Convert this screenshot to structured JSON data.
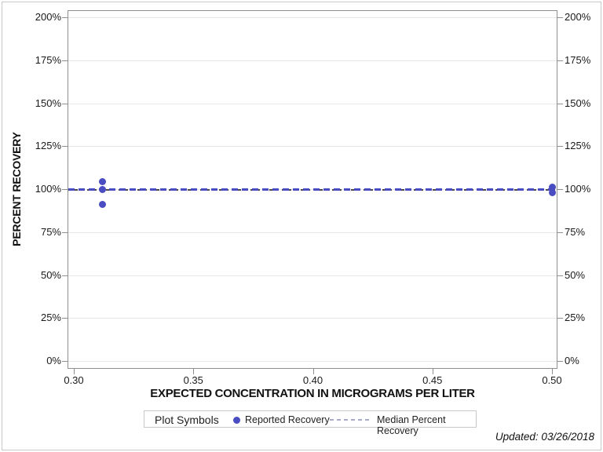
{
  "chart_data": {
    "type": "scatter",
    "title": "",
    "xlabel": "EXPECTED CONCENTRATION IN MICROGRAMS PER LITER",
    "ylabel": "PERCENT RECOVERY",
    "xlim": [
      0.3,
      0.5
    ],
    "ylim": [
      0,
      200
    ],
    "grid": "horizontal",
    "x_tick_values": [
      0.3,
      0.35,
      0.4,
      0.45,
      0.5
    ],
    "x_tick_labels": [
      "0.30",
      "0.35",
      "0.40",
      "0.45",
      "0.50"
    ],
    "y_tick_values": [
      0,
      25,
      50,
      75,
      100,
      125,
      150,
      175,
      200
    ],
    "y_tick_labels": [
      "0%",
      "25%",
      "50%",
      "75%",
      "100%",
      "125%",
      "150%",
      "175%",
      "200%"
    ],
    "y_axis_sides": [
      "left",
      "right"
    ],
    "series": [
      {
        "name": "Reported Recovery",
        "marker": "circle",
        "color": "#4a4cc1",
        "points": [
          {
            "x": 0.312,
            "y": 104.5
          },
          {
            "x": 0.312,
            "y": 100
          },
          {
            "x": 0.312,
            "y": 91
          },
          {
            "x": 0.5,
            "y": 101
          },
          {
            "x": 0.5,
            "y": 98
          }
        ],
        "connect_line": {
          "style": "dashed",
          "y": 100
        }
      },
      {
        "name": "Median Percent Recovery",
        "type": "reference-line",
        "style": "dashed",
        "color": "#4a4a4a",
        "y": 100
      }
    ],
    "legend": {
      "position": "bottom",
      "title": "Plot Symbols",
      "entries": [
        {
          "label": "Reported Recovery",
          "symbol": "circle",
          "color": "#4a4cc1"
        },
        {
          "label": "Median Percent Recovery",
          "symbol": "dashed-line",
          "color": "#a9aac6"
        }
      ]
    }
  },
  "footnote": "Updated: 03/26/2018",
  "colors": {
    "accent_blue": "#4a4cc1",
    "median_gray": "#4a4a4a",
    "legend_dash": "#a9aac6",
    "gridline": "#e7e7e7",
    "axis": "#8f8f8f"
  }
}
